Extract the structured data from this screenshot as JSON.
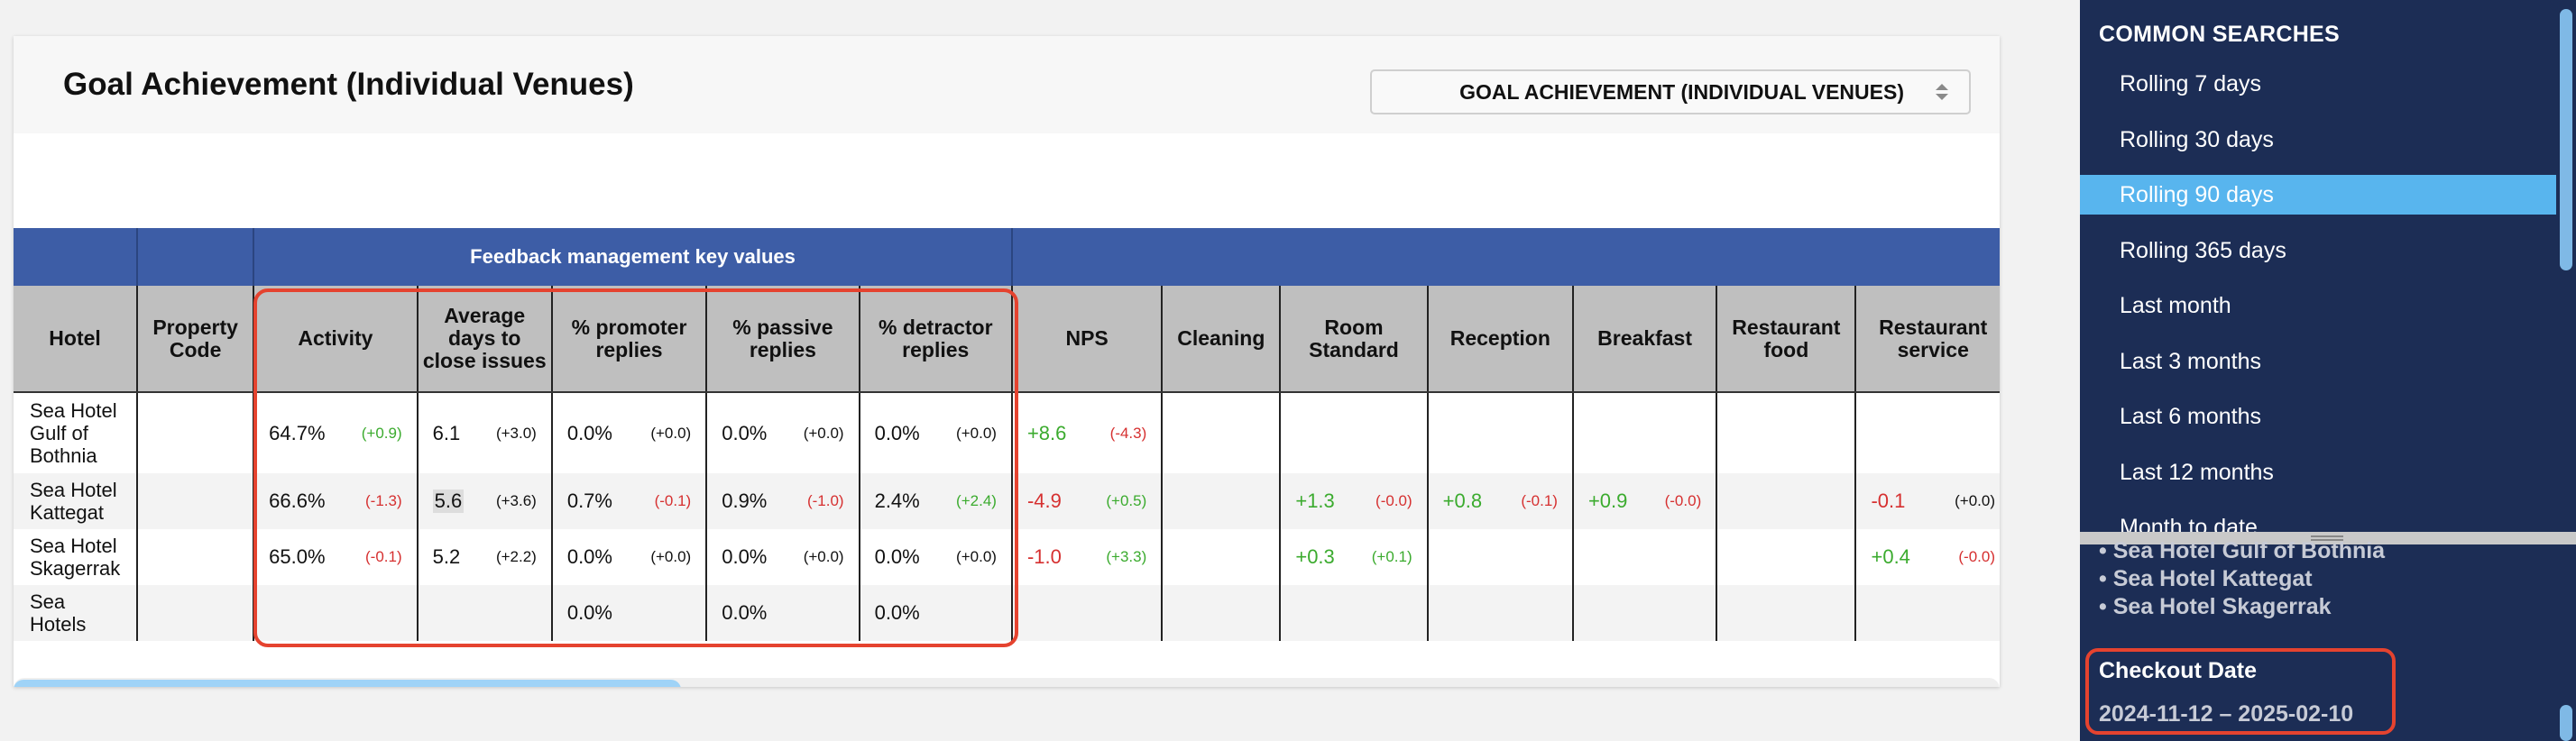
{
  "report": {
    "title": "Goal Achievement (Individual Venues)",
    "selector_value": "GOAL ACHIEVEMENT (INDIVIDUAL VENUES)"
  },
  "table": {
    "group_header": "Feedback management key values",
    "columns": [
      "Hotel",
      "Property Code",
      "Activity",
      "Average days to close issues",
      "% promoter replies",
      "% passive replies",
      "% detractor replies",
      "NPS",
      "Cleaning",
      "Room Standard",
      "Reception",
      "Breakfast",
      "Restaurant food",
      "Restaurant service"
    ],
    "rows": [
      {
        "hotel": "Sea Hotel Gulf of Bothnia",
        "property_code": "",
        "activity": {
          "value": "64.7%",
          "delta": "(+0.9)"
        },
        "avg_days": {
          "value": "6.1",
          "delta": "(+3.0)"
        },
        "promoter": {
          "value": "0.0%",
          "delta": "(+0.0)"
        },
        "passive": {
          "value": "0.0%",
          "delta": "(+0.0)"
        },
        "detractor": {
          "value": "0.0%",
          "delta": "(+0.0)"
        },
        "nps": {
          "value": "+8.6",
          "delta": "(-4.3)"
        },
        "room_standard": {
          "value": "",
          "delta": ""
        },
        "reception": {
          "value": "",
          "delta": ""
        },
        "breakfast": {
          "value": "",
          "delta": ""
        },
        "restaurant_service": {
          "value": "",
          "delta": ""
        }
      },
      {
        "hotel": "Sea Hotel Kattegat",
        "property_code": "",
        "activity": {
          "value": "66.6%",
          "delta": "(-1.3)"
        },
        "avg_days": {
          "value": "5.6",
          "delta": "(+3.6)"
        },
        "promoter": {
          "value": "0.7%",
          "delta": "(-0.1)"
        },
        "passive": {
          "value": "0.9%",
          "delta": "(-1.0)"
        },
        "detractor": {
          "value": "2.4%",
          "delta": "(+2.4)"
        },
        "nps": {
          "value": "-4.9",
          "delta": "(+0.5)"
        },
        "room_standard": {
          "value": "+1.3",
          "delta": "(-0.0)"
        },
        "reception": {
          "value": "+0.8",
          "delta": "(-0.1)"
        },
        "breakfast": {
          "value": "+0.9",
          "delta": "(-0.0)"
        },
        "restaurant_service": {
          "value": "-0.1",
          "delta": "(+0.0)"
        }
      },
      {
        "hotel": "Sea Hotel Skagerrak",
        "property_code": "",
        "activity": {
          "value": "65.0%",
          "delta": "(-0.1)"
        },
        "avg_days": {
          "value": "5.2",
          "delta": "(+2.2)"
        },
        "promoter": {
          "value": "0.0%",
          "delta": "(+0.0)"
        },
        "passive": {
          "value": "0.0%",
          "delta": "(+0.0)"
        },
        "detractor": {
          "value": "0.0%",
          "delta": "(+0.0)"
        },
        "nps": {
          "value": "-1.0",
          "delta": "(+3.3)"
        },
        "room_standard": {
          "value": "+0.3",
          "delta": "(+0.1)"
        },
        "reception": {
          "value": "",
          "delta": ""
        },
        "breakfast": {
          "value": "",
          "delta": ""
        },
        "restaurant_service": {
          "value": "+0.4",
          "delta": "(-0.0)"
        }
      },
      {
        "hotel": "Sea Hotels",
        "property_code": "",
        "activity": {
          "value": "",
          "delta": ""
        },
        "avg_days": {
          "value": "",
          "delta": ""
        },
        "promoter": {
          "value": "0.0%",
          "delta": ""
        },
        "passive": {
          "value": "0.0%",
          "delta": ""
        },
        "detractor": {
          "value": "0.0%",
          "delta": ""
        },
        "nps": {
          "value": "",
          "delta": ""
        },
        "room_standard": {
          "value": "",
          "delta": ""
        },
        "reception": {
          "value": "",
          "delta": ""
        },
        "breakfast": {
          "value": "",
          "delta": ""
        },
        "restaurant_service": {
          "value": "",
          "delta": ""
        }
      }
    ]
  },
  "sidebar": {
    "common_searches_title": "COMMON SEARCHES",
    "items": [
      "Rolling 7 days",
      "Rolling 30 days",
      "Rolling 90 days",
      "Rolling 365 days",
      "Last month",
      "Last 3 months",
      "Last 6 months",
      "Last 12 months",
      "Month to date"
    ],
    "active_item": "Rolling 90 days",
    "hotels": [
      "• Sea Hotel Gulf of Bothnia",
      "• Sea Hotel Kattegat",
      "• Sea Hotel Skagerrak"
    ],
    "checkout_label": "Checkout Date",
    "checkout_range": "2024-11-12 – 2025-02-10"
  },
  "colors": {
    "header_blue": "#3d5da6",
    "sidebar_navy": "#1c2d55",
    "active_item": "#58b5ee",
    "positive": "#3bab2e",
    "negative": "#d63030",
    "highlight_red": "#e5432f"
  }
}
